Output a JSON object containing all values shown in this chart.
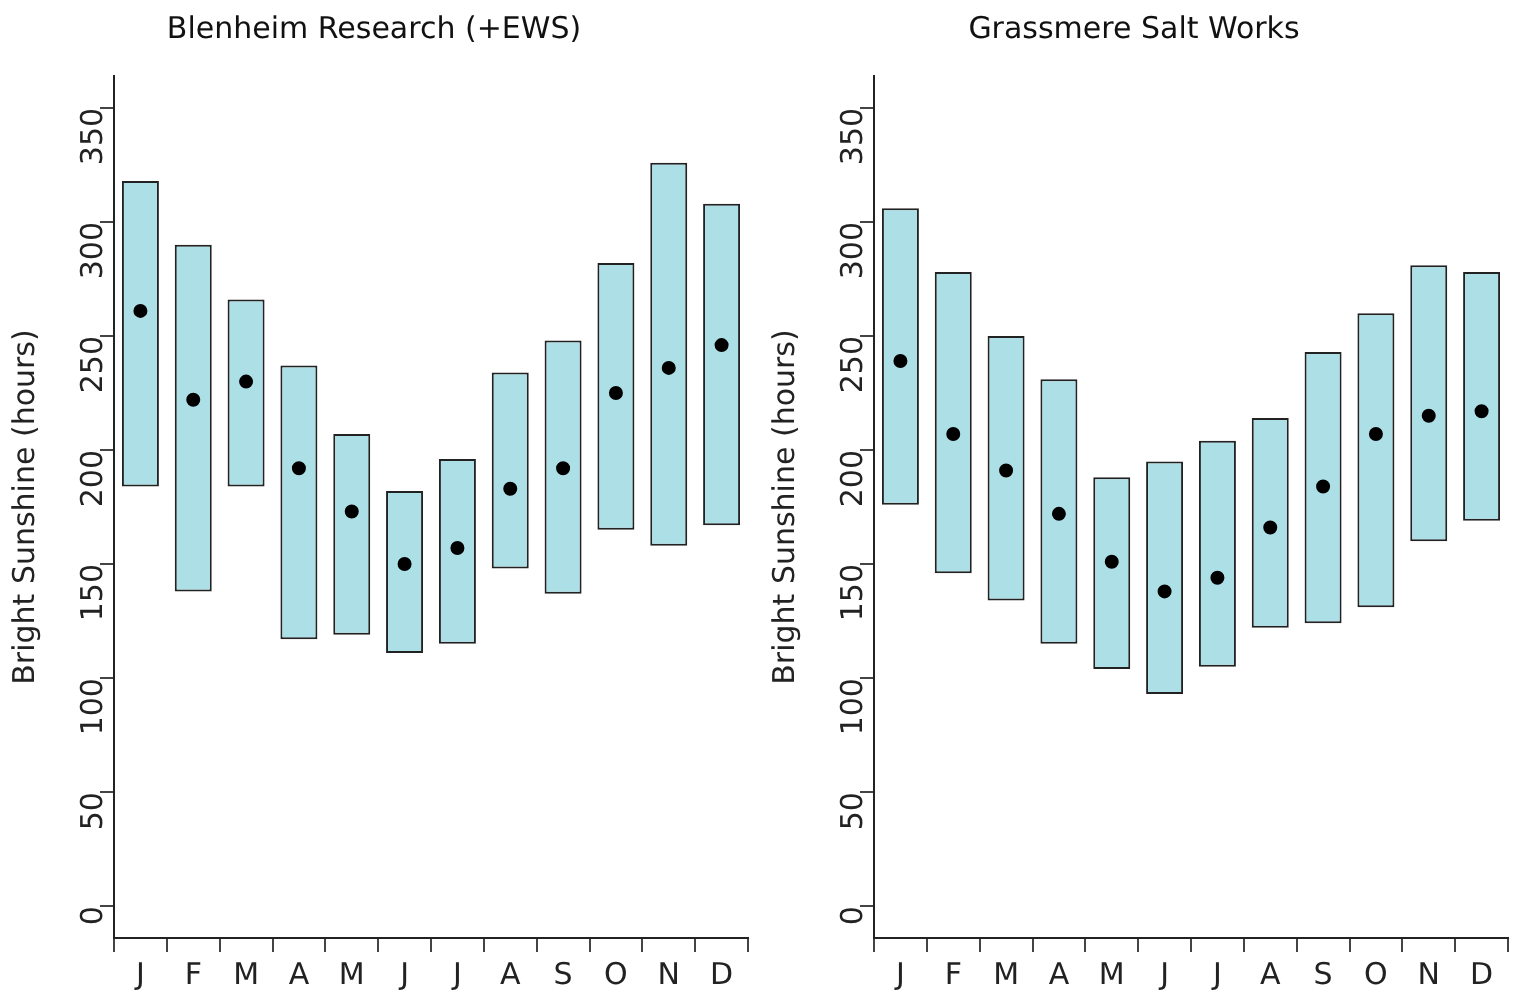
{
  "chart_data": [
    {
      "type": "bar",
      "title": "Blenheim Research (+EWS)",
      "ylabel": "Bright Sunshine (hours)",
      "categories": [
        "J",
        "F",
        "M",
        "A",
        "M",
        "J",
        "J",
        "A",
        "S",
        "O",
        "N",
        "D"
      ],
      "ylim": [
        -14,
        364
      ],
      "yticks": [
        0,
        50,
        100,
        150,
        200,
        250,
        300,
        350
      ],
      "grid": false,
      "legend": false,
      "series": [
        {
          "color": "#addfe7",
          "values": [
            134,
            152,
            82,
            120,
            88,
            71,
            81,
            86,
            111,
            117,
            168,
            141
          ],
          "base": [
            184,
            138,
            184,
            117,
            119,
            111,
            115,
            148,
            137,
            165,
            158,
            167
          ]
        },
        {
          "type": "scatter",
          "color": "#000000",
          "marker": "circle",
          "values": [
            261,
            222,
            230,
            192,
            173,
            150,
            157,
            183,
            192,
            225,
            236,
            246
          ]
        }
      ]
    },
    {
      "type": "bar",
      "title": "Grassmere Salt Works",
      "ylabel": "Bright Sunshine (hours)",
      "categories": [
        "J",
        "F",
        "M",
        "A",
        "M",
        "J",
        "J",
        "A",
        "S",
        "O",
        "N",
        "D"
      ],
      "ylim": [
        -14,
        364
      ],
      "yticks": [
        0,
        50,
        100,
        150,
        200,
        250,
        300,
        350
      ],
      "grid": false,
      "legend": false,
      "series": [
        {
          "color": "#addfe7",
          "values": [
            130,
            132,
            116,
            116,
            84,
            102,
            99,
            92,
            119,
            129,
            121,
            109
          ],
          "base": [
            176,
            146,
            134,
            115,
            104,
            93,
            105,
            122,
            124,
            131,
            160,
            169
          ]
        },
        {
          "type": "scatter",
          "color": "#000000",
          "marker": "circle",
          "values": [
            239,
            207,
            191,
            172,
            151,
            138,
            144,
            166,
            184,
            207,
            215,
            217
          ]
        }
      ]
    }
  ]
}
